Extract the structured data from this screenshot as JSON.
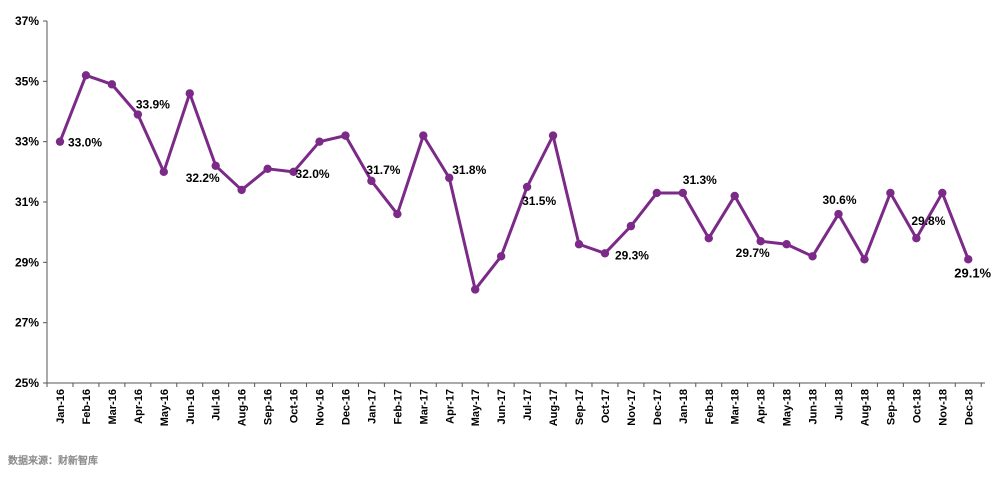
{
  "chart_data": {
    "type": "line",
    "x": [
      "Jan-16",
      "Feb-16",
      "Mar-16",
      "Apr-16",
      "May-16",
      "Jun-16",
      "Jul-16",
      "Aug-16",
      "Sep-16",
      "Oct-16",
      "Nov-16",
      "Dec-16",
      "Jan-17",
      "Feb-17",
      "Mar-17",
      "Apr-17",
      "May-17",
      "Jun-17",
      "Jul-17",
      "Aug-17",
      "Sep-17",
      "Oct-17",
      "Nov-17",
      "Dec-17",
      "Jan-18",
      "Feb-18",
      "Mar-18",
      "Apr-18",
      "May-18",
      "Jun-18",
      "Jul-18",
      "Aug-18",
      "Sep-18",
      "Oct-18",
      "Nov-18",
      "Dec-18"
    ],
    "series": [
      {
        "values": [
          33.0,
          35.2,
          34.9,
          33.9,
          32.0,
          34.6,
          32.2,
          31.4,
          32.1,
          32.0,
          33.0,
          33.2,
          31.7,
          30.6,
          33.2,
          31.8,
          28.1,
          29.2,
          31.5,
          33.2,
          29.6,
          29.3,
          30.2,
          31.3,
          31.3,
          29.8,
          31.2,
          29.7,
          29.6,
          29.2,
          30.6,
          29.1,
          31.3,
          29.8,
          31.3,
          29.1
        ],
        "color": "#7b2a87"
      }
    ],
    "data_labels": [
      {
        "index": 0,
        "text": "33.0%"
      },
      {
        "index": 3,
        "text": "33.9%"
      },
      {
        "index": 6,
        "text": "32.2%"
      },
      {
        "index": 9,
        "text": "32.0%"
      },
      {
        "index": 12,
        "text": "31.7%"
      },
      {
        "index": 15,
        "text": "31.8%"
      },
      {
        "index": 18,
        "text": "31.5%"
      },
      {
        "index": 21,
        "text": "29.3%"
      },
      {
        "index": 24,
        "text": "31.3%"
      },
      {
        "index": 27,
        "text": "29.7%"
      },
      {
        "index": 30,
        "text": "30.6%"
      },
      {
        "index": 33,
        "text": "29.8%"
      },
      {
        "index": 35,
        "text": "29.1%"
      }
    ],
    "ylim": [
      25,
      37
    ],
    "yticks": [
      "25%",
      "27%",
      "29%",
      "31%",
      "33%",
      "35%",
      "37%"
    ],
    "grid": false,
    "title": "",
    "xlabel": "",
    "ylabel": ""
  },
  "source_text": "数据来源：财新智库"
}
